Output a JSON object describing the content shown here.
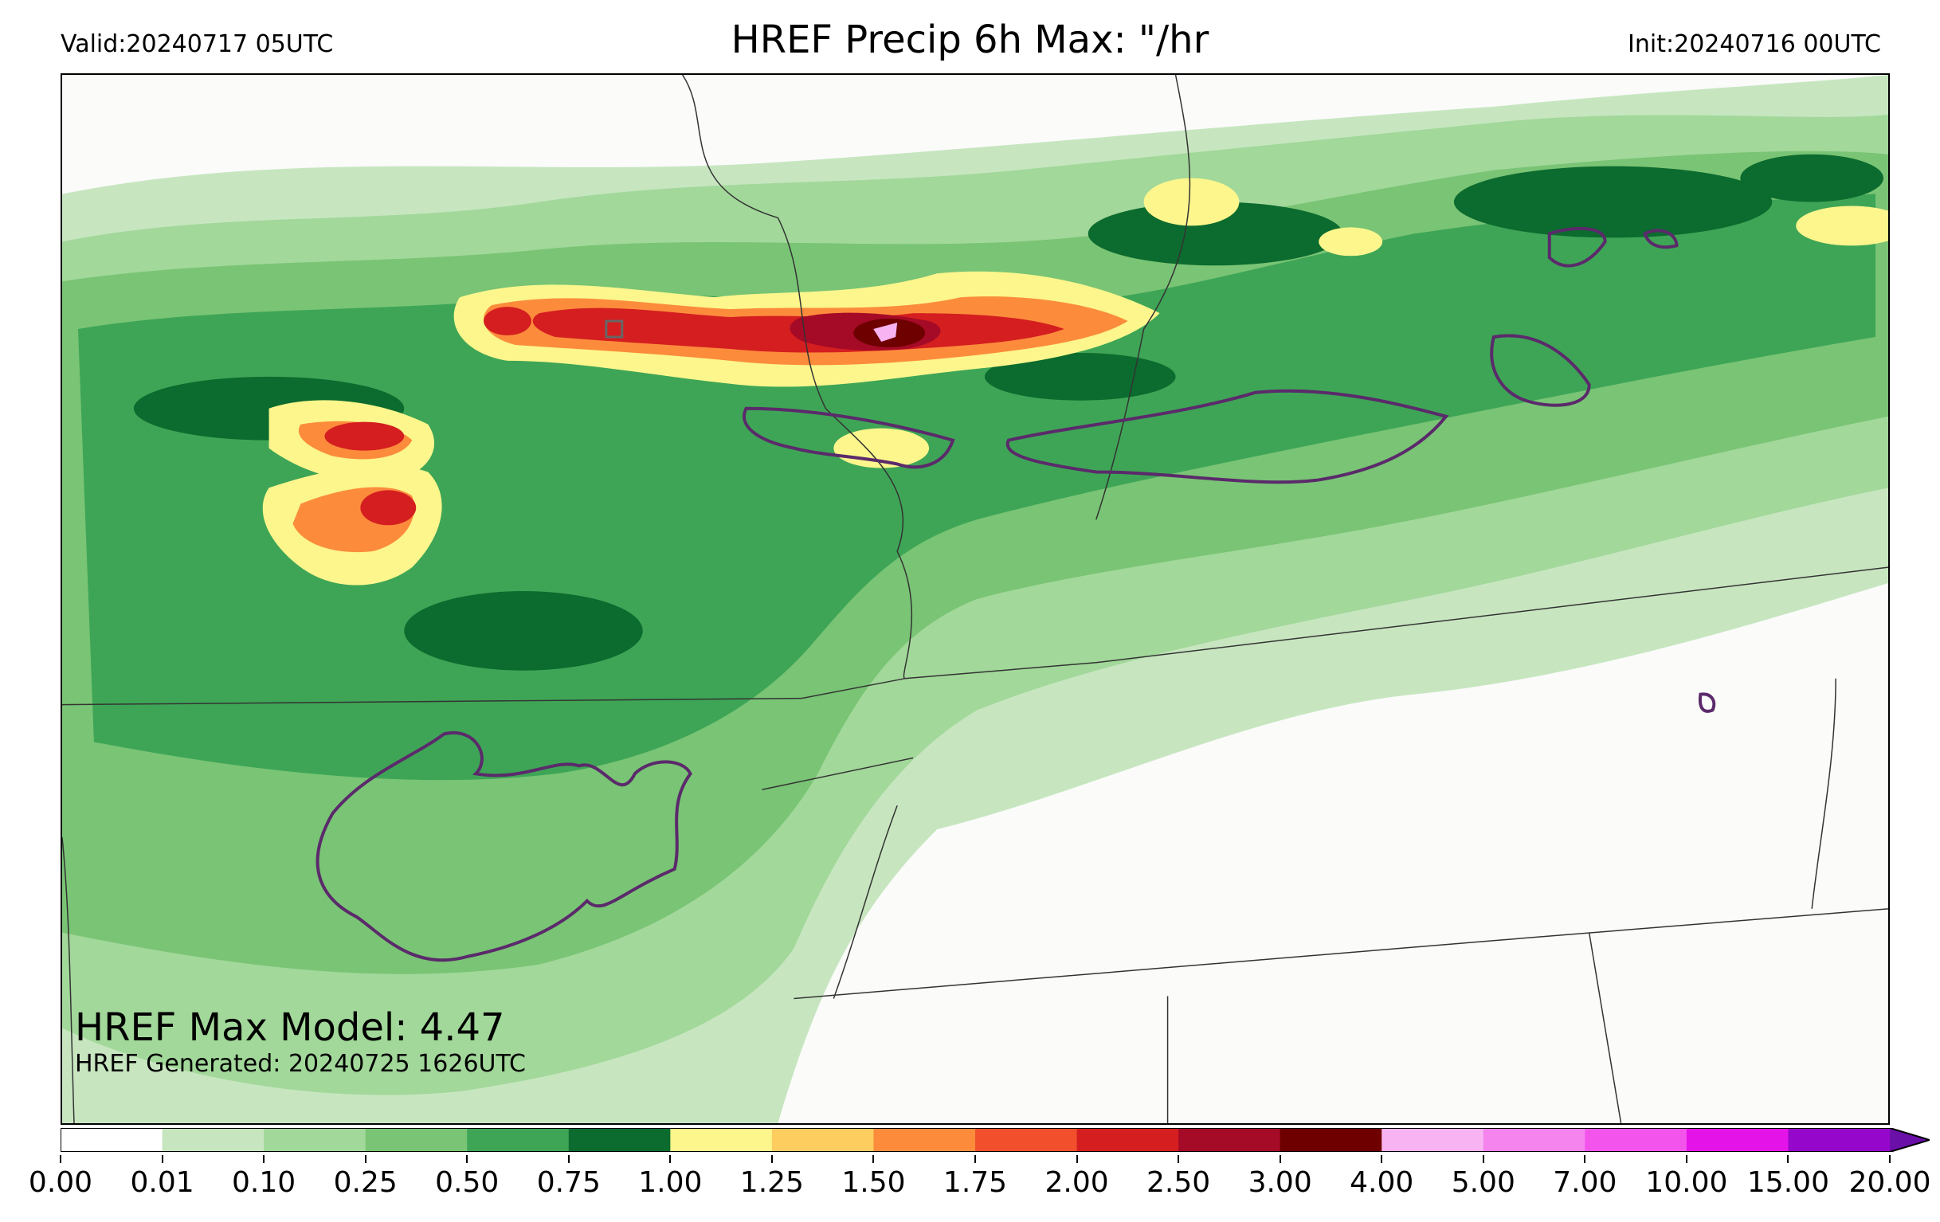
{
  "header": {
    "valid": "Valid:20240717 05UTC",
    "title": "HREF Precip 6h Max: \"/hr",
    "init": "Init:20240716 00UTC"
  },
  "annotations": {
    "max_model": "HREF Max Model: 4.47",
    "generated": "HREF Generated: 20240725 1626UTC"
  },
  "colorbar": {
    "levels": [
      "0.00",
      "0.01",
      "0.10",
      "0.25",
      "0.50",
      "0.75",
      "1.00",
      "1.25",
      "1.50",
      "1.75",
      "2.00",
      "2.50",
      "3.00",
      "4.00",
      "5.00",
      "7.00",
      "10.00",
      "15.00",
      "20.00"
    ],
    "colors": [
      "#ffffff",
      "#c7e6c0",
      "#a2d89a",
      "#79c475",
      "#3ea556",
      "#0c6b2e",
      "#fcf68c",
      "#fdcd5f",
      "#fc8c3c",
      "#f2502c",
      "#d51e20",
      "#a50a26",
      "#6e0000",
      "#f8b4f2",
      "#f584ee",
      "#f354ec",
      "#e414e8",
      "#9607cc"
    ],
    "extend_color": "#6a0fa8"
  },
  "map": {
    "ocean_bg": "#fbfbfa",
    "boundary_color": "#333333",
    "contour_color": "#5b2a6b",
    "prob_box_color": "#666666"
  }
}
